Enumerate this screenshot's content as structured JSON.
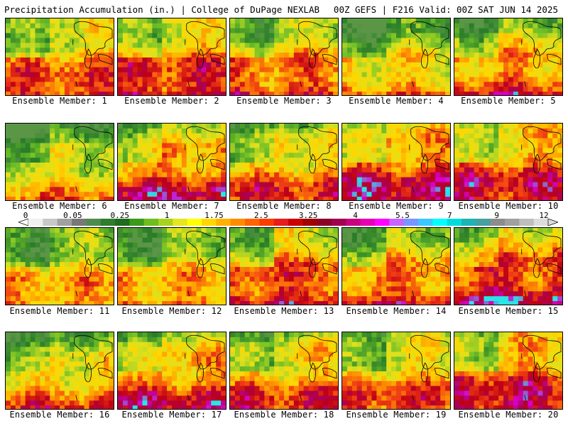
{
  "header": {
    "title": "Precipitation Accumulation (in.) | College of DuPage NEXLAB",
    "run_info": "00Z GEFS | F216 Valid: 00Z SAT JUN 14 2025"
  },
  "member_label_prefix": "Ensemble Member:",
  "panels": [
    {
      "member": "1",
      "wet": 0.62
    },
    {
      "member": "2",
      "wet": 0.72
    },
    {
      "member": "3",
      "wet": 0.6
    },
    {
      "member": "4",
      "wet": 0.35
    },
    {
      "member": "5",
      "wet": 0.58
    },
    {
      "member": "6",
      "wet": 0.3
    },
    {
      "member": "7",
      "wet": 0.7
    },
    {
      "member": "8",
      "wet": 0.55
    },
    {
      "member": "9",
      "wet": 0.8
    },
    {
      "member": "10",
      "wet": 0.75
    },
    {
      "member": "11",
      "wet": 0.4
    },
    {
      "member": "12",
      "wet": 0.42
    },
    {
      "member": "13",
      "wet": 0.72
    },
    {
      "member": "14",
      "wet": 0.6
    },
    {
      "member": "15",
      "wet": 0.85
    },
    {
      "member": "16",
      "wet": 0.45
    },
    {
      "member": "17",
      "wet": 0.68
    },
    {
      "member": "18",
      "wet": 0.58
    },
    {
      "member": "19",
      "wet": 0.55
    },
    {
      "member": "20",
      "wet": 0.78
    }
  ],
  "colorbar": {
    "tick_labels": [
      "0",
      "0.05",
      "0.25",
      "1",
      "1.75",
      "2.5",
      "3.25",
      "4",
      "5.5",
      "7",
      "9",
      "12"
    ],
    "colors": [
      "#f0f0f0",
      "#c8c8c8",
      "#a0a0a0",
      "#787878",
      "#4e8c4e",
      "#2e7d2e",
      "#1f6b1f",
      "#3a9a1a",
      "#6ebe1e",
      "#a8d21e",
      "#e6e61e",
      "#ffff00",
      "#ffd700",
      "#ffb000",
      "#ff8c00",
      "#ff6400",
      "#ff3c00",
      "#e61e1e",
      "#cc0000",
      "#a00000",
      "#8c0028",
      "#a00050",
      "#c8007d",
      "#e600b4",
      "#ff00ff",
      "#c864ff",
      "#7896ff",
      "#3cc8ff",
      "#00ffff",
      "#00dcdc",
      "#1eb4b4",
      "#46a0a0",
      "#8c8c8c",
      "#a0a0a0",
      "#bebebe",
      "#dcdcdc"
    ]
  }
}
